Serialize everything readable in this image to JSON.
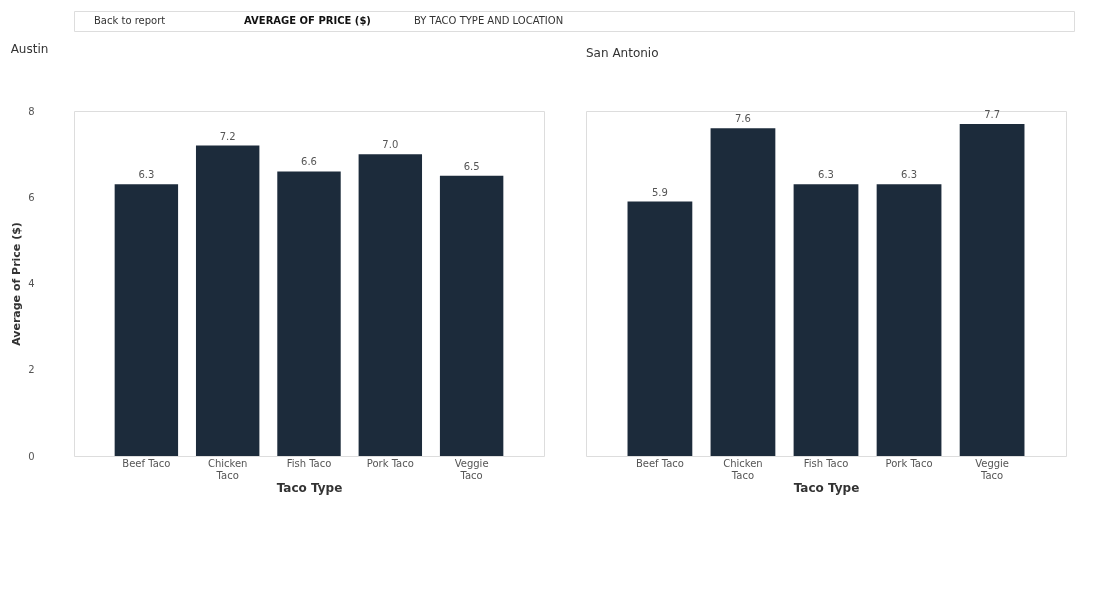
{
  "chart_data": [
    {
      "type": "bar",
      "title": "Austin",
      "annotations": [
        "Back to report",
        "AVERAGE OF PRICE ($)",
        "BY TACO TYPE AND LOCATION"
      ],
      "xlabel": "Taco Type",
      "ylabel": "Average of Price ($)",
      "categories": [
        "Beef Taco",
        "Chicken Taco",
        "Fish Taco",
        "Pork Taco",
        "Veggie Taco"
      ],
      "values": [
        6.3,
        7.2,
        6.6,
        7.0,
        6.5
      ],
      "value_labels": [
        "6.3",
        "7.2",
        "6.6",
        "7.0",
        "6.5"
      ],
      "color": "#1c2b3b",
      "ylim": [
        0,
        8
      ],
      "yticks": [
        0,
        2,
        4,
        6,
        8
      ],
      "grid": false
    },
    {
      "type": "bar",
      "title": "San Antonio",
      "xlabel": "Taco Type",
      "categories": [
        "Beef Taco",
        "Chicken Taco",
        "Fish Taco",
        "Pork Taco",
        "Veggie Taco"
      ],
      "values": [
        5.9,
        7.6,
        6.3,
        6.3,
        7.7
      ],
      "value_labels": [
        "5.9",
        "7.6",
        "6.3",
        "6.3",
        "7.7"
      ],
      "color": "#1c2b3b",
      "ylim": [
        0,
        8
      ],
      "yticks": [
        0,
        2,
        4,
        6,
        8
      ],
      "grid": false,
      "tick_labels": "x"
    }
  ]
}
